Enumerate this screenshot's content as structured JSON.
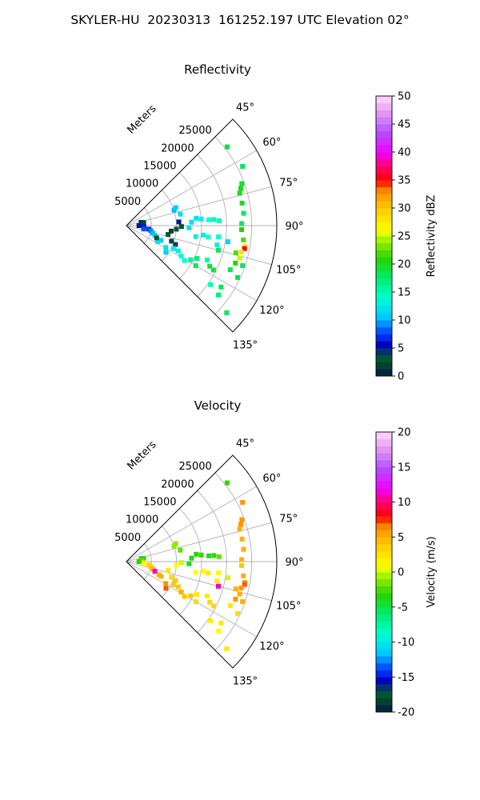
{
  "suptitle": "SKYLER-HU  20230313  161252.197 UTC Elevation 02°",
  "chart_data": [
    {
      "type": "polar-radar-sector",
      "title": "Reflectivity",
      "radial_label": "Meters",
      "radial_ticks": [
        "5000",
        "10000",
        "15000",
        "20000",
        "25000"
      ],
      "angle_ticks": [
        "45°",
        "60°",
        "75°",
        "90°",
        "105°",
        "120°",
        "135°"
      ],
      "colorbar": {
        "label": "Reflectivity dBZ",
        "range": [
          0,
          50
        ],
        "ticks": [
          "0",
          "5",
          "10",
          "15",
          "20",
          "25",
          "30",
          "35",
          "40",
          "45",
          "50"
        ]
      },
      "gates": [
        [
          3000,
          78,
          0
        ],
        [
          3500,
          80,
          2
        ],
        [
          3000,
          86,
          3
        ],
        [
          2500,
          90,
          5
        ],
        [
          3500,
          94,
          6
        ],
        [
          4500,
          99,
          7
        ],
        [
          3500,
          101,
          8
        ],
        [
          5000,
          102,
          9
        ],
        [
          5500,
          106,
          10
        ],
        [
          6000,
          109,
          11
        ],
        [
          7500,
          113,
          11
        ],
        [
          7000,
          117,
          12
        ],
        [
          9000,
          119,
          12
        ],
        [
          9500,
          124,
          11
        ],
        [
          6500,
          112,
          3
        ],
        [
          8500,
          102,
          3
        ],
        [
          9500,
          109,
          4
        ],
        [
          10500,
          111,
          4
        ],
        [
          10500,
          116,
          13
        ],
        [
          11500,
          116,
          13
        ],
        [
          12500,
          119,
          14
        ],
        [
          13500,
          121,
          14
        ],
        [
          14500,
          118,
          16
        ],
        [
          15500,
          115,
          17
        ],
        [
          16000,
          120,
          18
        ],
        [
          18500,
          116,
          19
        ],
        [
          19500,
          117,
          19
        ],
        [
          17500,
          113,
          15
        ],
        [
          14000,
          99,
          13
        ],
        [
          15500,
          97,
          13
        ],
        [
          16500,
          98,
          14
        ],
        [
          12500,
          92,
          12
        ],
        [
          13000,
          87,
          12
        ],
        [
          14000,
          84,
          12
        ],
        [
          15000,
          85,
          13
        ],
        [
          16500,
          86,
          14
        ],
        [
          17500,
          86,
          15
        ],
        [
          18500,
          87,
          15
        ],
        [
          11000,
          91,
          3
        ],
        [
          10000,
          94,
          3
        ],
        [
          9000,
          97,
          2
        ],
        [
          10000,
          72,
          10
        ],
        [
          10500,
          70,
          11
        ],
        [
          11000,
          78,
          12
        ],
        [
          10500,
          86,
          5
        ],
        [
          26000,
          63,
          18
        ],
        [
          24500,
          70,
          19
        ],
        [
          24000,
          72,
          20
        ],
        [
          23500,
          74,
          20
        ],
        [
          23500,
          79,
          20
        ],
        [
          23500,
          84,
          18
        ],
        [
          23000,
          89,
          18
        ],
        [
          23000,
          92,
          21
        ],
        [
          23500,
          97,
          22
        ],
        [
          24000,
          100,
          27
        ],
        [
          24000,
          101,
          35
        ],
        [
          23500,
          103,
          28
        ],
        [
          23500,
          106,
          25
        ],
        [
          22500,
          104,
          22
        ],
        [
          23000,
          109,
          21
        ],
        [
          24500,
          109,
          18
        ],
        [
          24500,
          115,
          19
        ],
        [
          22500,
          113,
          18
        ],
        [
          19000,
          105,
          18
        ],
        [
          22500,
          123,
          18
        ],
        [
          23000,
          127,
          17
        ],
        [
          20500,
          125,
          15
        ],
        [
          26500,
          131,
          18
        ],
        [
          25500,
          52,
          19
        ],
        [
          18500,
          97,
          14
        ],
        [
          18500,
          102,
          13
        ],
        [
          20500,
          99,
          11
        ]
      ]
    },
    {
      "type": "polar-radar-sector",
      "title": "Velocity",
      "radial_label": "Meters",
      "radial_ticks": [
        "5000",
        "10000",
        "15000",
        "20000",
        "25000"
      ],
      "angle_ticks": [
        "45°",
        "60°",
        "75°",
        "90°",
        "105°",
        "120°",
        "135°"
      ],
      "colorbar": {
        "label": "Velocity (m/s)",
        "range": [
          -20,
          20
        ],
        "ticks": [
          "-20",
          "-15",
          "-10",
          "-5",
          "0",
          "5",
          "10",
          "15",
          "20"
        ]
      },
      "gates": [
        [
          3000,
          78,
          -4
        ],
        [
          3500,
          80,
          -3
        ],
        [
          3000,
          86,
          -2
        ],
        [
          2500,
          90,
          -3
        ],
        [
          3500,
          94,
          1
        ],
        [
          4500,
          99,
          3
        ],
        [
          5000,
          102,
          4
        ],
        [
          5500,
          106,
          5
        ],
        [
          6000,
          109,
          11
        ],
        [
          7000,
          112,
          5
        ],
        [
          7500,
          113,
          5
        ],
        [
          9000,
          119,
          6
        ],
        [
          9500,
          124,
          7
        ],
        [
          8500,
          102,
          2
        ],
        [
          9500,
          109,
          3
        ],
        [
          10500,
          111,
          4
        ],
        [
          10500,
          116,
          4
        ],
        [
          11500,
          116,
          4
        ],
        [
          12500,
          119,
          5
        ],
        [
          13500,
          121,
          4
        ],
        [
          14500,
          118,
          4
        ],
        [
          15500,
          115,
          2
        ],
        [
          16000,
          120,
          3
        ],
        [
          18500,
          116,
          3
        ],
        [
          19500,
          117,
          3
        ],
        [
          17500,
          113,
          2
        ],
        [
          14000,
          99,
          1
        ],
        [
          15500,
          97,
          1
        ],
        [
          16500,
          98,
          2
        ],
        [
          12500,
          92,
          -4
        ],
        [
          13000,
          87,
          -4
        ],
        [
          14000,
          84,
          -3
        ],
        [
          15000,
          85,
          -3
        ],
        [
          16500,
          86,
          -4
        ],
        [
          17500,
          86,
          -3
        ],
        [
          18500,
          87,
          -2
        ],
        [
          11000,
          91,
          0
        ],
        [
          10000,
          94,
          1
        ],
        [
          10000,
          72,
          -1
        ],
        [
          10500,
          70,
          -1
        ],
        [
          11000,
          78,
          -2
        ],
        [
          26000,
          63,
          6
        ],
        [
          24500,
          70,
          6
        ],
        [
          24000,
          72,
          6
        ],
        [
          23500,
          74,
          5
        ],
        [
          23500,
          79,
          5
        ],
        [
          23500,
          84,
          5
        ],
        [
          23000,
          89,
          5
        ],
        [
          23000,
          92,
          4
        ],
        [
          23500,
          97,
          5
        ],
        [
          24000,
          100,
          6
        ],
        [
          24000,
          101,
          7
        ],
        [
          23500,
          103,
          6
        ],
        [
          23500,
          106,
          5
        ],
        [
          22500,
          104,
          5
        ],
        [
          23000,
          109,
          6
        ],
        [
          24500,
          109,
          5
        ],
        [
          24500,
          115,
          3
        ],
        [
          22500,
          113,
          2
        ],
        [
          19000,
          105,
          11
        ],
        [
          22500,
          123,
          2
        ],
        [
          23000,
          127,
          1
        ],
        [
          20500,
          125,
          2
        ],
        [
          26500,
          131,
          2
        ],
        [
          25500,
          52,
          -3
        ],
        [
          18500,
          97,
          1
        ],
        [
          18500,
          102,
          2
        ],
        [
          20500,
          99,
          0
        ]
      ]
    }
  ]
}
